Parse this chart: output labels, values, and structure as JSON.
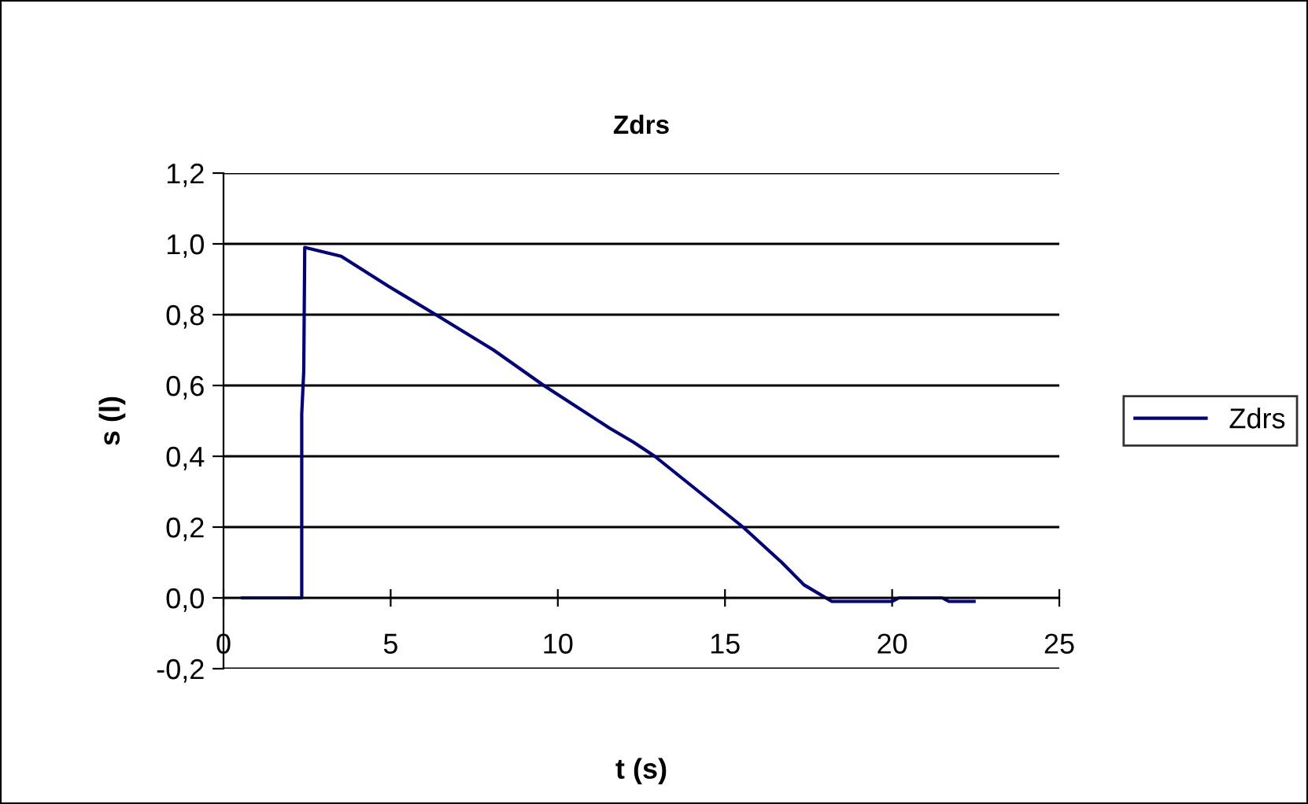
{
  "chart_data": {
    "type": "line",
    "title": "Zdrs",
    "xlabel": "t (s)",
    "ylabel": "s (l)",
    "series": [
      {
        "name": "Zdrs",
        "color": "#000080",
        "x": [
          0.57,
          2.34,
          2.34,
          2.4,
          2.43,
          3.52,
          4.94,
          6.35,
          8.08,
          9.58,
          11.54,
          12.26,
          12.9,
          15.54,
          16.7,
          17.36,
          18.2,
          20.0,
          20.2,
          21.5,
          21.7,
          22.45
        ],
        "values": [
          0,
          0,
          0.52,
          0.64,
          0.99,
          0.965,
          0.88,
          0.8,
          0.7,
          0.6,
          0.48,
          0.44,
          0.4,
          0.2,
          0.1,
          0.037,
          -0.01,
          -0.01,
          0,
          0,
          -0.01,
          -0.01
        ]
      }
    ],
    "xlim": [
      0,
      25
    ],
    "ylim": [
      -0.2,
      1.2
    ],
    "xticks": [
      0,
      5,
      10,
      15,
      20,
      25
    ],
    "yticks": [
      {
        "value": -0.2,
        "label": "-0,2"
      },
      {
        "value": 0,
        "label": "0,0"
      },
      {
        "value": 0.2,
        "label": "0,2"
      },
      {
        "value": 0.4,
        "label": "0,4"
      },
      {
        "value": 0.6,
        "label": "0,6"
      },
      {
        "value": 0.8,
        "label": "0,8"
      },
      {
        "value": 1.0,
        "label": "1,0"
      },
      {
        "value": 1.2,
        "label": "1,2"
      }
    ],
    "grid": "y",
    "legend": "right",
    "marker": "none",
    "line_style": "solid"
  }
}
